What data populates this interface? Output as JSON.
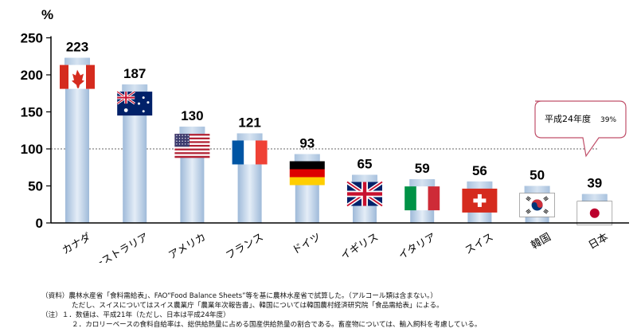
{
  "chart_data": {
    "type": "bar",
    "unit": "%",
    "yticks": [
      0,
      50,
      100,
      150,
      200,
      250
    ],
    "ylim": [
      0,
      250
    ],
    "reference_line": 100,
    "grid": false,
    "categories": [
      "カナダ",
      "オーストラリア",
      "アメリカ",
      "フランス",
      "ドイツ",
      "イギリス",
      "イタリア",
      "スイス",
      "韓国",
      "日本"
    ],
    "values": [
      223,
      187,
      130,
      121,
      93,
      65,
      59,
      56,
      50,
      39
    ],
    "flags": [
      "canada-flag-icon",
      "australia-flag-icon",
      "usa-flag-icon",
      "france-flag-icon",
      "germany-flag-icon",
      "uk-flag-icon",
      "italy-flag-icon",
      "switzerland-flag-icon",
      "korea-flag-icon",
      "japan-flag-icon"
    ],
    "callout": {
      "label": "平成24年度",
      "value": "39%"
    },
    "bar_color": "#b7cde6"
  },
  "notes": [
    "（資料）農林水産省「食料需給表」、FAO“Food Balance Sheets”等を基に農林水産省で試算した。（アルコール類は含まない。）",
    "ただし、スイスについてはスイス農業庁「農業年次報告書」、韓国については韓国農村経済研究院「食品需給表」による。",
    "（注）１．数値は、平成21年（ただし、日本は平成24年度）",
    "２．カロリーベースの食料自給率は、総供給熱量に占める国産供給熱量の割合である。畜産物については、輸入飼料を考慮している。"
  ]
}
